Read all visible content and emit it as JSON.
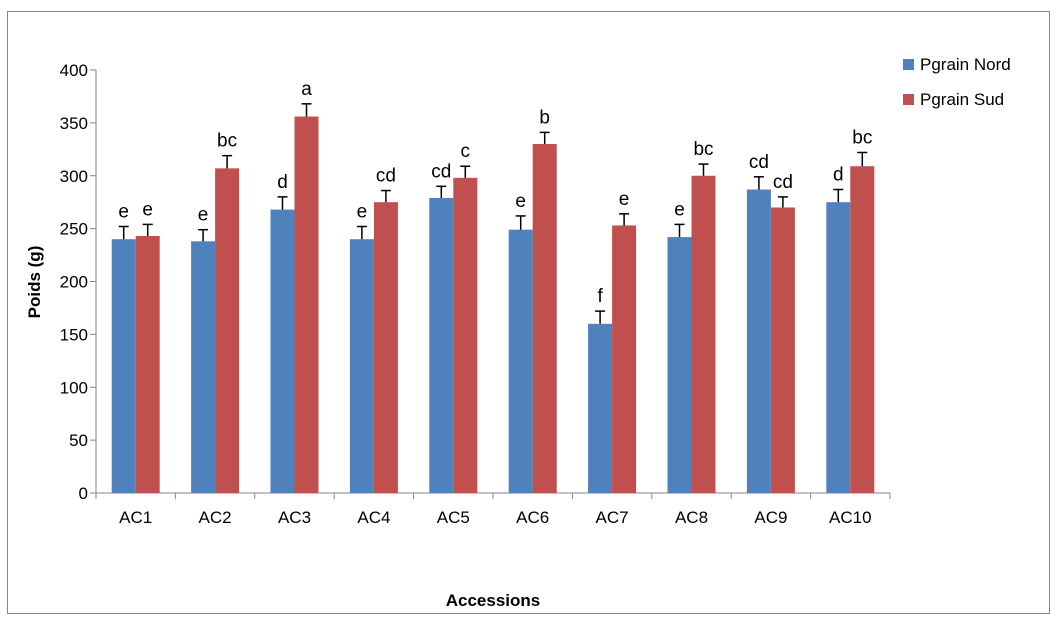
{
  "chart_data": {
    "type": "bar",
    "xlabel": "Accessions",
    "ylabel": "Poids (g)",
    "ylim": [
      0,
      400
    ],
    "yticks": [
      0,
      50,
      100,
      150,
      200,
      250,
      300,
      350,
      400
    ],
    "categories": [
      "AC1",
      "AC2",
      "AC3",
      "AC4",
      "AC5",
      "AC6",
      "AC7",
      "AC8",
      "AC9",
      "AC10"
    ],
    "legend_position": "top-right",
    "grid": false,
    "series": [
      {
        "name": "Pgrain Nord",
        "color": "#4f81bd",
        "values": [
          240,
          238,
          268,
          240,
          279,
          249,
          160,
          242,
          287,
          275
        ],
        "errors": [
          12,
          11,
          12,
          12,
          11,
          13,
          12,
          12,
          12,
          12
        ],
        "labels": [
          "e",
          "e",
          "d",
          "e",
          "cd",
          "e",
          "f",
          "e",
          "cd",
          "d"
        ]
      },
      {
        "name": "Pgrain Sud",
        "color": "#c0504d",
        "values": [
          243,
          307,
          356,
          275,
          298,
          330,
          253,
          300,
          270,
          309
        ],
        "errors": [
          11,
          12,
          12,
          11,
          11,
          11,
          11,
          11,
          10,
          13
        ],
        "labels": [
          "e",
          "bc",
          "a",
          "cd",
          "c",
          "b",
          "e",
          "bc",
          "cd",
          "bc"
        ]
      }
    ]
  }
}
